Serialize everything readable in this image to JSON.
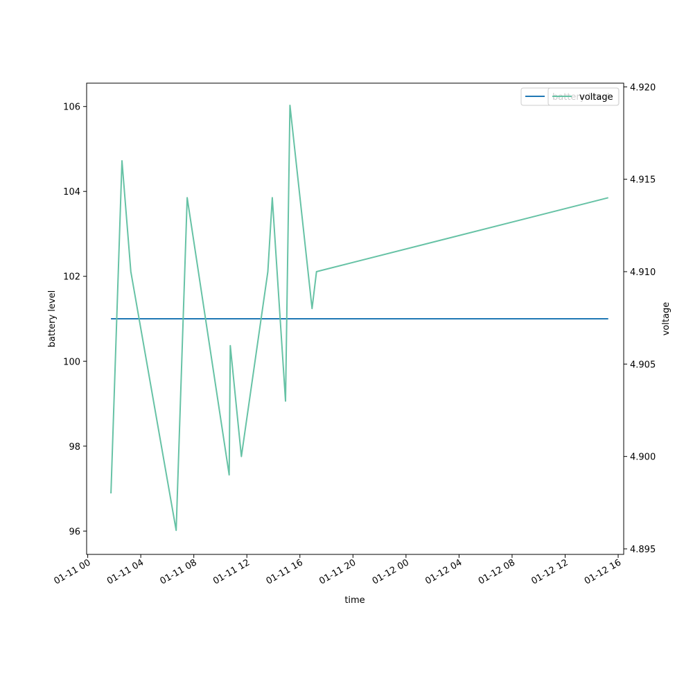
{
  "chart_data": {
    "type": "line",
    "xlabel": "time",
    "ylabel_left": "battery level",
    "ylabel_right": "voltage",
    "x_range": [
      "01-10 23:55",
      "01-12 16:25"
    ],
    "x_ticks": [
      "01-11 00",
      "01-11 04",
      "01-11 08",
      "01-11 12",
      "01-11 16",
      "01-11 20",
      "01-12 00",
      "01-12 04",
      "01-12 08",
      "01-12 12",
      "01-12 16"
    ],
    "ylim_left": [
      95.45,
      106.55
    ],
    "yticks_left": [
      96,
      98,
      100,
      102,
      104,
      106
    ],
    "ylim_right": [
      4.8947,
      4.9202
    ],
    "yticks_right": [
      4.895,
      4.9,
      4.905,
      4.91,
      4.915,
      4.92
    ],
    "legend_position": "top-right",
    "series": [
      {
        "name": "battery level",
        "axis": "left",
        "color": "#1f77b4",
        "x": [
          "01-11 01:45",
          "01-12 15:15"
        ],
        "y": [
          101,
          101
        ]
      },
      {
        "name": "voltage",
        "axis": "right",
        "color": "#66c2a5",
        "x": [
          "01-11 01:45",
          "01-11 02:35",
          "01-11 03:15",
          "01-11 06:40",
          "01-11 07:30",
          "01-11 10:40",
          "01-11 10:45",
          "01-11 11:35",
          "01-11 13:35",
          "01-11 13:55",
          "01-11 14:55",
          "01-11 15:15",
          "01-11 16:55",
          "01-11 17:15",
          "01-12 15:15"
        ],
        "y": [
          4.898,
          4.916,
          4.91,
          4.896,
          4.914,
          4.899,
          4.906,
          4.9,
          4.91,
          4.914,
          4.903,
          4.919,
          4.908,
          4.91,
          4.914
        ]
      }
    ]
  }
}
